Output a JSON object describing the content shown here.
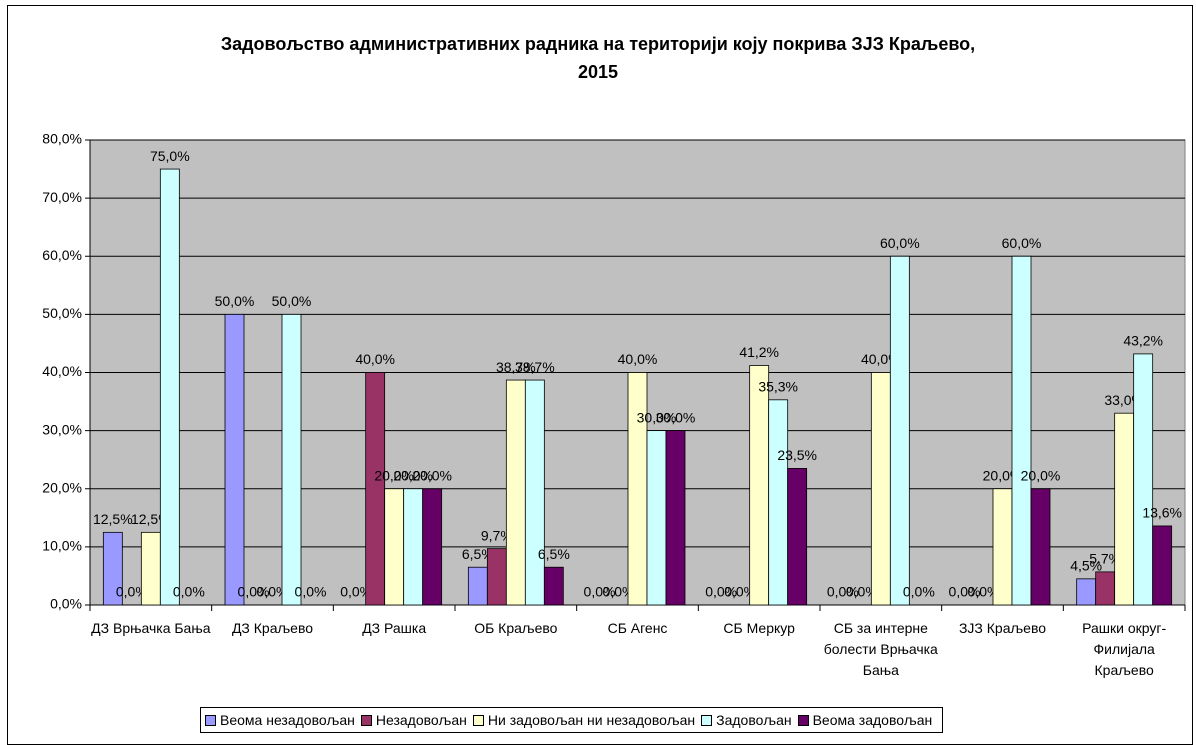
{
  "chart_data": {
    "type": "bar",
    "title": "Задовољство административних радника на територији коју покрива ЗЈЗ Краљево,\n2015",
    "categories": [
      "ДЗ Врњачка Бања",
      "ДЗ Краљево",
      "ДЗ Рашка",
      "ОБ Краљево",
      "СБ Агенс",
      "СБ Меркур",
      "СБ за интерне болести Врњачка Бања",
      "ЗЈЗ Краљево",
      "Рашки округ-Филијала Краљево"
    ],
    "series": [
      {
        "name": "Веома незадовољан",
        "color": "#9999ff",
        "values": [
          12.5,
          50,
          0,
          6.5,
          0,
          0,
          0,
          0,
          4.5
        ],
        "value_labels": [
          "12,5%",
          "50,0%",
          "0,0%",
          "6,5%",
          "0,0%",
          "0,0%",
          "0,0%",
          "0,0%",
          "4,5%"
        ]
      },
      {
        "name": "Незадовољан",
        "color": "#993366",
        "values": [
          0,
          0,
          40,
          9.7,
          0,
          0,
          0,
          0,
          5.7
        ],
        "value_labels": [
          "0,0%",
          "0,0%",
          "40,0%",
          "9,7%",
          "0,0%",
          "0,0%",
          "0,0%",
          "0,0%",
          "5,7%"
        ]
      },
      {
        "name": "Ни задовољан ни незадовољан",
        "color": "#ffffcc",
        "values": [
          12.5,
          0,
          20,
          38.7,
          40,
          41.2,
          40,
          20,
          33.0
        ],
        "value_labels": [
          "12,5%",
          "0,0%",
          "20,0%",
          "38,7%",
          "40,0%",
          "41,2%",
          "40,0%",
          "20,0%",
          "33,0%"
        ]
      },
      {
        "name": "Задовољан",
        "color": "#ccffff",
        "values": [
          75,
          50,
          20,
          38.7,
          30,
          35.3,
          60,
          60,
          43.2
        ],
        "value_labels": [
          "75,0%",
          "50,0%",
          "20,0%",
          "38,7%",
          "30,0%",
          "35,3%",
          "60,0%",
          "60,0%",
          "43,2%"
        ]
      },
      {
        "name": "Веома задовољан",
        "color": "#660066",
        "values": [
          0,
          0,
          20,
          6.5,
          30,
          23.5,
          0,
          20,
          13.6
        ],
        "value_labels": [
          "0,0%",
          "0,0%",
          "20,0%",
          "6,5%",
          "30,0%",
          "23,5%",
          "0,0%",
          "20,0%",
          "13,6%"
        ]
      }
    ],
    "ylim": [
      0,
      80
    ],
    "yticks": [
      {
        "value": 0,
        "label": "0,0%"
      },
      {
        "value": 10,
        "label": "10,0%"
      },
      {
        "value": 20,
        "label": "20,0%"
      },
      {
        "value": 30,
        "label": "30,0%"
      },
      {
        "value": 40,
        "label": "40,0%"
      },
      {
        "value": 50,
        "label": "50,0%"
      },
      {
        "value": 60,
        "label": "60,0%"
      },
      {
        "value": 70,
        "label": "70,0%"
      },
      {
        "value": 80,
        "label": "80,0%"
      }
    ],
    "grid": true,
    "plot_background": "#c0c0c0",
    "legend": "bottom"
  }
}
